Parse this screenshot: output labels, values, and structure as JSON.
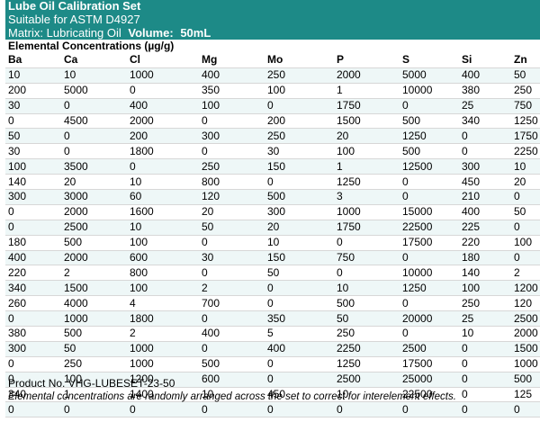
{
  "header": {
    "title": "Lube Oil Calibration Set",
    "subtitle": "Suitable for ASTM D4927",
    "matrix_label": "Matrix:",
    "matrix_value": "Lubricating Oil",
    "volume_label": "Volume:",
    "volume_value": "50mL"
  },
  "section_title": "Elemental Concentrations (µg/g)",
  "columns": [
    "Ba",
    "Ca",
    "Cl",
    "Mg",
    "Mo",
    "P",
    "S",
    "Si",
    "Zn"
  ],
  "rows": [
    [
      "10",
      "10",
      "1000",
      "400",
      "250",
      "2000",
      "5000",
      "400",
      "50"
    ],
    [
      "200",
      "5000",
      "0",
      "350",
      "100",
      "1",
      "10000",
      "380",
      "250"
    ],
    [
      "30",
      "0",
      "400",
      "100",
      "0",
      "1750",
      "0",
      "25",
      "750"
    ],
    [
      "0",
      "4500",
      "2000",
      "0",
      "200",
      "1500",
      "500",
      "340",
      "1250"
    ],
    [
      "50",
      "0",
      "200",
      "300",
      "250",
      "20",
      "1250",
      "0",
      "1750"
    ],
    [
      "30",
      "0",
      "1800",
      "0",
      "30",
      "100",
      "500",
      "0",
      "2250"
    ],
    [
      "100",
      "3500",
      "0",
      "250",
      "150",
      "1",
      "12500",
      "300",
      "10"
    ],
    [
      "140",
      "20",
      "10",
      "800",
      "0",
      "1250",
      "0",
      "450",
      "20"
    ],
    [
      "300",
      "3000",
      "60",
      "120",
      "500",
      "3",
      "0",
      "210",
      "0"
    ],
    [
      "0",
      "2000",
      "1600",
      "20",
      "300",
      "1000",
      "15000",
      "400",
      "50"
    ],
    [
      "0",
      "2500",
      "10",
      "50",
      "20",
      "1750",
      "22500",
      "225",
      "0"
    ],
    [
      "180",
      "500",
      "100",
      "0",
      "10",
      "0",
      "17500",
      "220",
      "100"
    ],
    [
      "400",
      "2000",
      "600",
      "30",
      "150",
      "750",
      "0",
      "180",
      "0"
    ],
    [
      "220",
      "2",
      "800",
      "0",
      "50",
      "0",
      "10000",
      "140",
      "2"
    ],
    [
      "340",
      "1500",
      "100",
      "2",
      "0",
      "10",
      "1250",
      "100",
      "1200"
    ],
    [
      "260",
      "4000",
      "4",
      "700",
      "0",
      "500",
      "0",
      "250",
      "120"
    ],
    [
      "0",
      "1000",
      "1800",
      "0",
      "350",
      "50",
      "20000",
      "25",
      "2500"
    ],
    [
      "380",
      "500",
      "2",
      "400",
      "5",
      "250",
      "0",
      "10",
      "2000"
    ],
    [
      "300",
      "50",
      "1000",
      "0",
      "400",
      "2250",
      "2500",
      "0",
      "1500"
    ],
    [
      "0",
      "250",
      "1000",
      "500",
      "0",
      "1250",
      "17500",
      "0",
      "1000"
    ],
    [
      "0",
      "100",
      "1200",
      "600",
      "0",
      "2500",
      "25000",
      "0",
      "500"
    ],
    [
      "340",
      "1",
      "1400",
      "10",
      "450",
      "10",
      "22500",
      "0",
      "125"
    ],
    [
      "0",
      "0",
      "0",
      "0",
      "0",
      "0",
      "0",
      "0",
      "0"
    ]
  ],
  "footer": {
    "product_no": "Product No. VHG-LUBESET-23-50",
    "note": "Elemental concentrations are randomly arranged across the set to correct for interelement effects."
  },
  "colors": {
    "header_bg": "#1d8a87",
    "row_stripe": "#eef7f7"
  }
}
